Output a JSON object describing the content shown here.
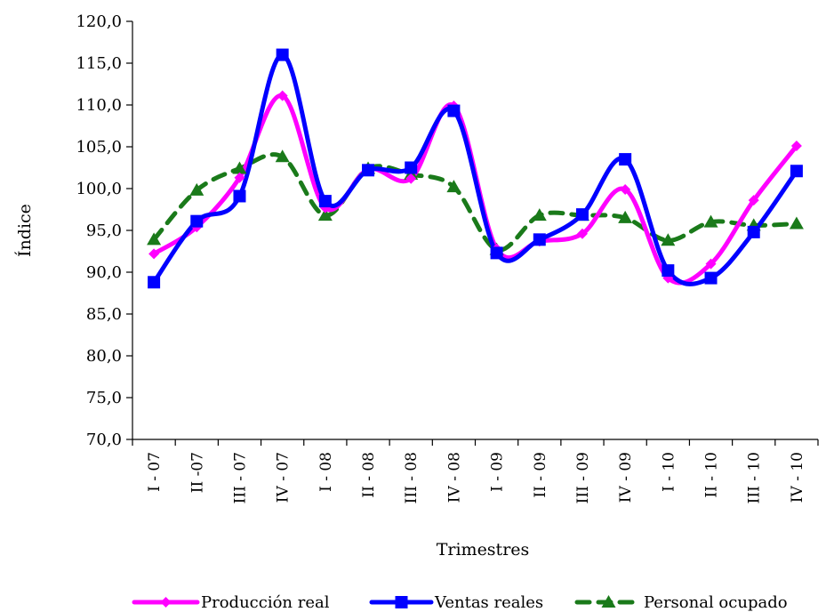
{
  "chart_data": {
    "type": "line",
    "title": "",
    "xlabel": "Trimestres",
    "ylabel": "Índice",
    "ylim": [
      70,
      120
    ],
    "yticks": [
      "70,0",
      "75,0",
      "80,0",
      "85,0",
      "90,0",
      "95,0",
      "100,0",
      "105,0",
      "110,0",
      "115,0",
      "120,0"
    ],
    "grid": false,
    "legend_position": "bottom",
    "categories": [
      "I - 07",
      "II -07",
      "III - 07",
      "IV - 07",
      "I - 08",
      "II - 08",
      "III - 08",
      "IV - 08",
      "I - 09",
      "II - 09",
      "III - 09",
      "IV - 09",
      "I - 10",
      "II - 10",
      "III - 10",
      "IV - 10"
    ],
    "series": [
      {
        "name": "Producción real",
        "color": "#ff00ff",
        "marker": "diamond",
        "dash": "solid",
        "values": [
          92.2,
          95.4,
          101.3,
          111.1,
          97.7,
          102.3,
          101.2,
          109.9,
          92.8,
          93.7,
          94.6,
          99.9,
          89.3,
          91.0,
          98.6,
          105.1
        ]
      },
      {
        "name": "Ventas reales",
        "color": "#0000ff",
        "marker": "square",
        "dash": "solid",
        "values": [
          88.8,
          96.1,
          99.1,
          116.0,
          98.5,
          102.2,
          102.5,
          109.3,
          92.3,
          93.9,
          96.9,
          103.5,
          90.2,
          89.3,
          94.8,
          102.1
        ]
      },
      {
        "name": "Personal ocupado",
        "color": "#1a7a1a",
        "marker": "triangle",
        "dash": "dashed",
        "values": [
          93.9,
          99.8,
          102.4,
          103.8,
          96.8,
          102.4,
          101.7,
          100.2,
          92.7,
          96.8,
          96.8,
          96.5,
          93.8,
          96.0,
          95.6,
          95.8
        ]
      }
    ]
  }
}
